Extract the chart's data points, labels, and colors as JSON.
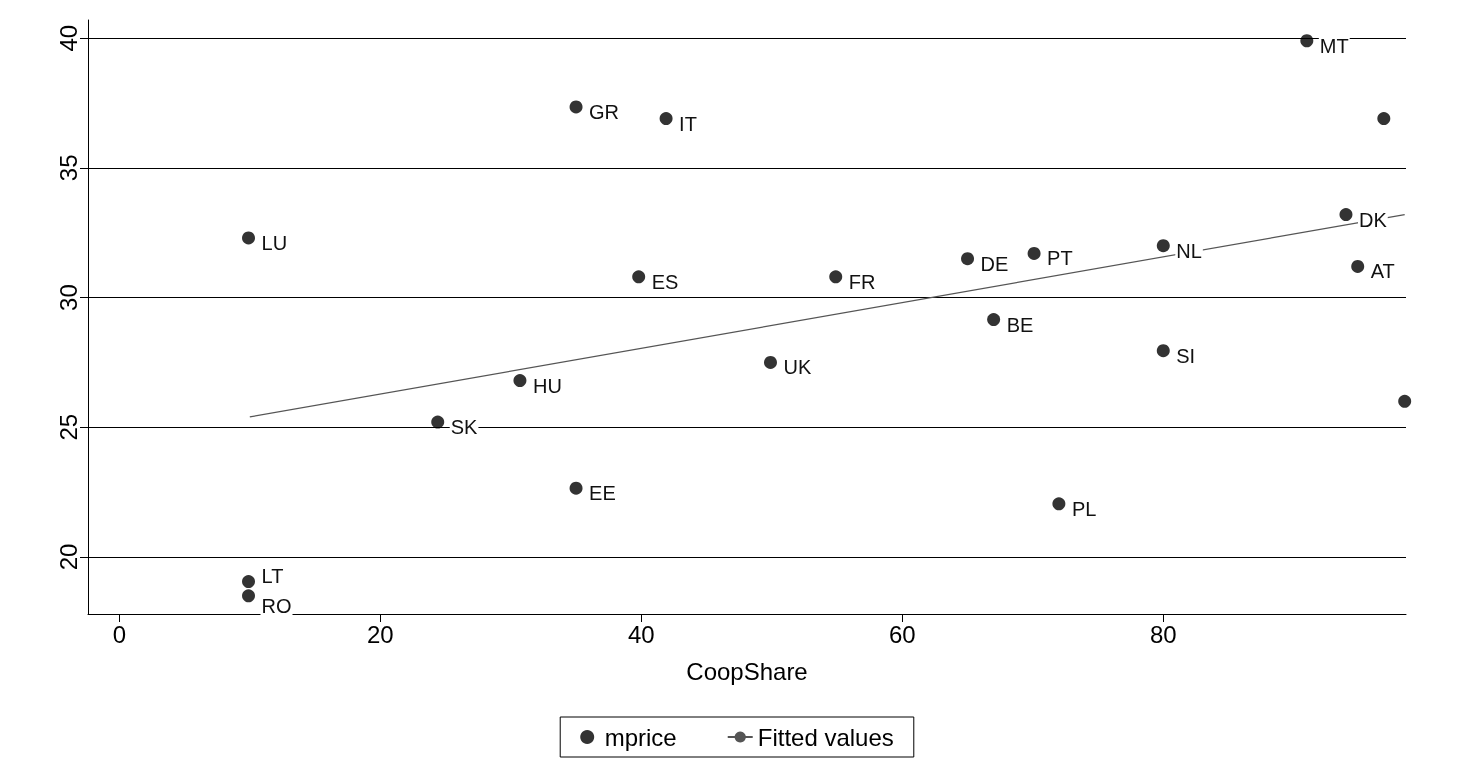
{
  "chart_data": {
    "type": "scatter",
    "xlabel": "CoopShare",
    "xlim": [
      -2.4,
      98.6
    ],
    "xticks": [
      0,
      20,
      40,
      60,
      80
    ],
    "ylim": [
      17.8,
      40.7
    ],
    "yticks": [
      20,
      25,
      30,
      35,
      40
    ],
    "grid": "y",
    "legend": "bottom",
    "series": [
      {
        "name": "mprice",
        "color": "#000000",
        "marker": "circle",
        "x": [
          91,
          96.9,
          35,
          41.9,
          9.9,
          94,
          80,
          70.1,
          65,
          94.9,
          39.8,
          54.9,
          67,
          80,
          49.9,
          30.7,
          98.5,
          24.4,
          35,
          72,
          9.9,
          9.9
        ],
        "values": [
          39.9,
          36.9,
          37.35,
          36.9,
          32.3,
          33.2,
          32,
          31.7,
          31.5,
          31.2,
          30.8,
          30.8,
          29.15,
          27.95,
          27.5,
          26.8,
          26,
          25.2,
          22.65,
          22.05,
          19.05,
          18.5
        ]
      },
      {
        "type": "line",
        "name": "Fitted values",
        "color": "#555555",
        "marker": "none",
        "x": [
          10,
          98.5
        ],
        "values": [
          25.4,
          33.2
        ]
      }
    ],
    "annotations": [
      {
        "text": "MT",
        "x": 91,
        "y": 39.9
      },
      {
        "text": "GR",
        "x": 35,
        "y": 37.35
      },
      {
        "text": "IT",
        "x": 41.9,
        "y": 36.9
      },
      {
        "text": "LU",
        "x": 9.9,
        "y": 32.3
      },
      {
        "text": "DK",
        "x": 94,
        "y": 33.2
      },
      {
        "text": "NL",
        "x": 80,
        "y": 32
      },
      {
        "text": "PT",
        "x": 70.1,
        "y": 31.7
      },
      {
        "text": "DE",
        "x": 65,
        "y": 31.5
      },
      {
        "text": "AT",
        "x": 94.9,
        "y": 31.2
      },
      {
        "text": "ES",
        "x": 39.8,
        "y": 30.8
      },
      {
        "text": "FR",
        "x": 54.9,
        "y": 30.8
      },
      {
        "text": "BE",
        "x": 67,
        "y": 29.15
      },
      {
        "text": "SI",
        "x": 80,
        "y": 27.95
      },
      {
        "text": "UK",
        "x": 49.9,
        "y": 27.5
      },
      {
        "text": "HU",
        "x": 30.7,
        "y": 26.8
      },
      {
        "text": "SK",
        "x": 24.4,
        "y": 25.2
      },
      {
        "text": "EE",
        "x": 35,
        "y": 22.65
      },
      {
        "text": "PL",
        "x": 72,
        "y": 22.05
      },
      {
        "text": "LT",
        "x": 9.9,
        "y": 19.05
      },
      {
        "text": "RO",
        "x": 9.9,
        "y": 18.5
      }
    ]
  }
}
